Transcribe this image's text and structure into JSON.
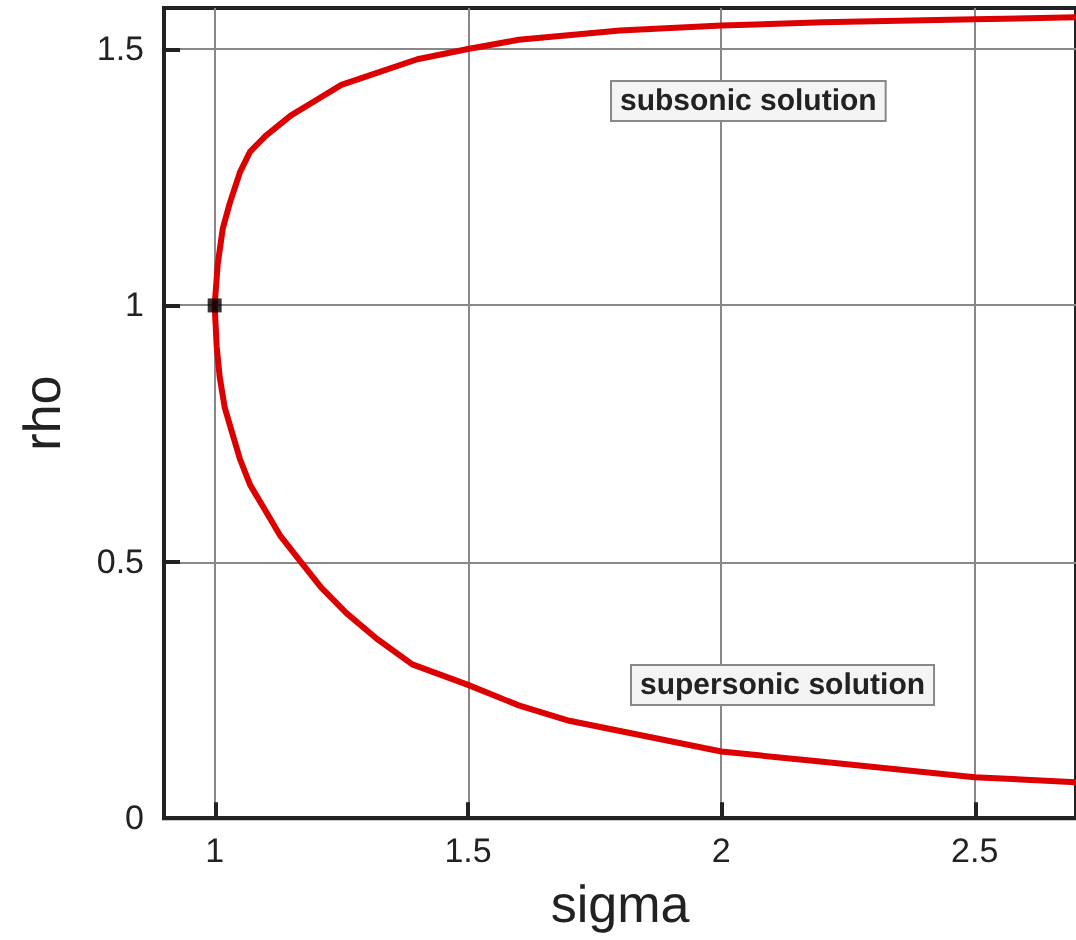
{
  "chart_data": {
    "type": "line",
    "xlabel": "sigma",
    "ylabel": "rho",
    "series": [
      {
        "type": "line",
        "color": "#dd0000",
        "x": [
          2.7,
          2.5,
          2.2,
          2.0,
          1.8,
          1.6,
          1.5,
          1.4,
          1.31,
          1.25,
          1.2,
          1.15,
          1.1,
          1.07,
          1.05,
          1.03,
          1.016,
          1.006,
          1.0,
          1.004,
          1.01,
          1.02,
          1.035,
          1.05,
          1.07,
          1.1,
          1.13,
          1.17,
          1.21,
          1.26,
          1.32,
          1.39,
          1.5,
          1.6,
          1.7,
          1.8,
          2.0,
          2.2,
          2.5,
          2.7
        ],
        "values": [
          1.562,
          1.558,
          1.552,
          1.546,
          1.536,
          1.518,
          1.5,
          1.48,
          1.45,
          1.43,
          1.4,
          1.37,
          1.33,
          1.3,
          1.26,
          1.2,
          1.15,
          1.08,
          1.0,
          0.92,
          0.86,
          0.8,
          0.75,
          0.7,
          0.65,
          0.6,
          0.55,
          0.5,
          0.45,
          0.4,
          0.35,
          0.3,
          0.26,
          0.22,
          0.19,
          0.17,
          0.13,
          0.11,
          0.08,
          0.07
        ]
      },
      {
        "type": "scatter",
        "color": "#000000",
        "marker": "square",
        "x": [
          1.0
        ],
        "values": [
          1.0
        ]
      }
    ],
    "annotations": [
      "subsonic solution",
      "supersonic solution"
    ],
    "xlim": [
      0.9,
      2.7
    ],
    "xticks": [
      1,
      1.5,
      2,
      2.5
    ],
    "ylim": [
      0,
      1.58
    ],
    "yticks": [
      0,
      0.5,
      1,
      1.5
    ],
    "grid": true,
    "marker": "none",
    "line_style": "solid"
  }
}
